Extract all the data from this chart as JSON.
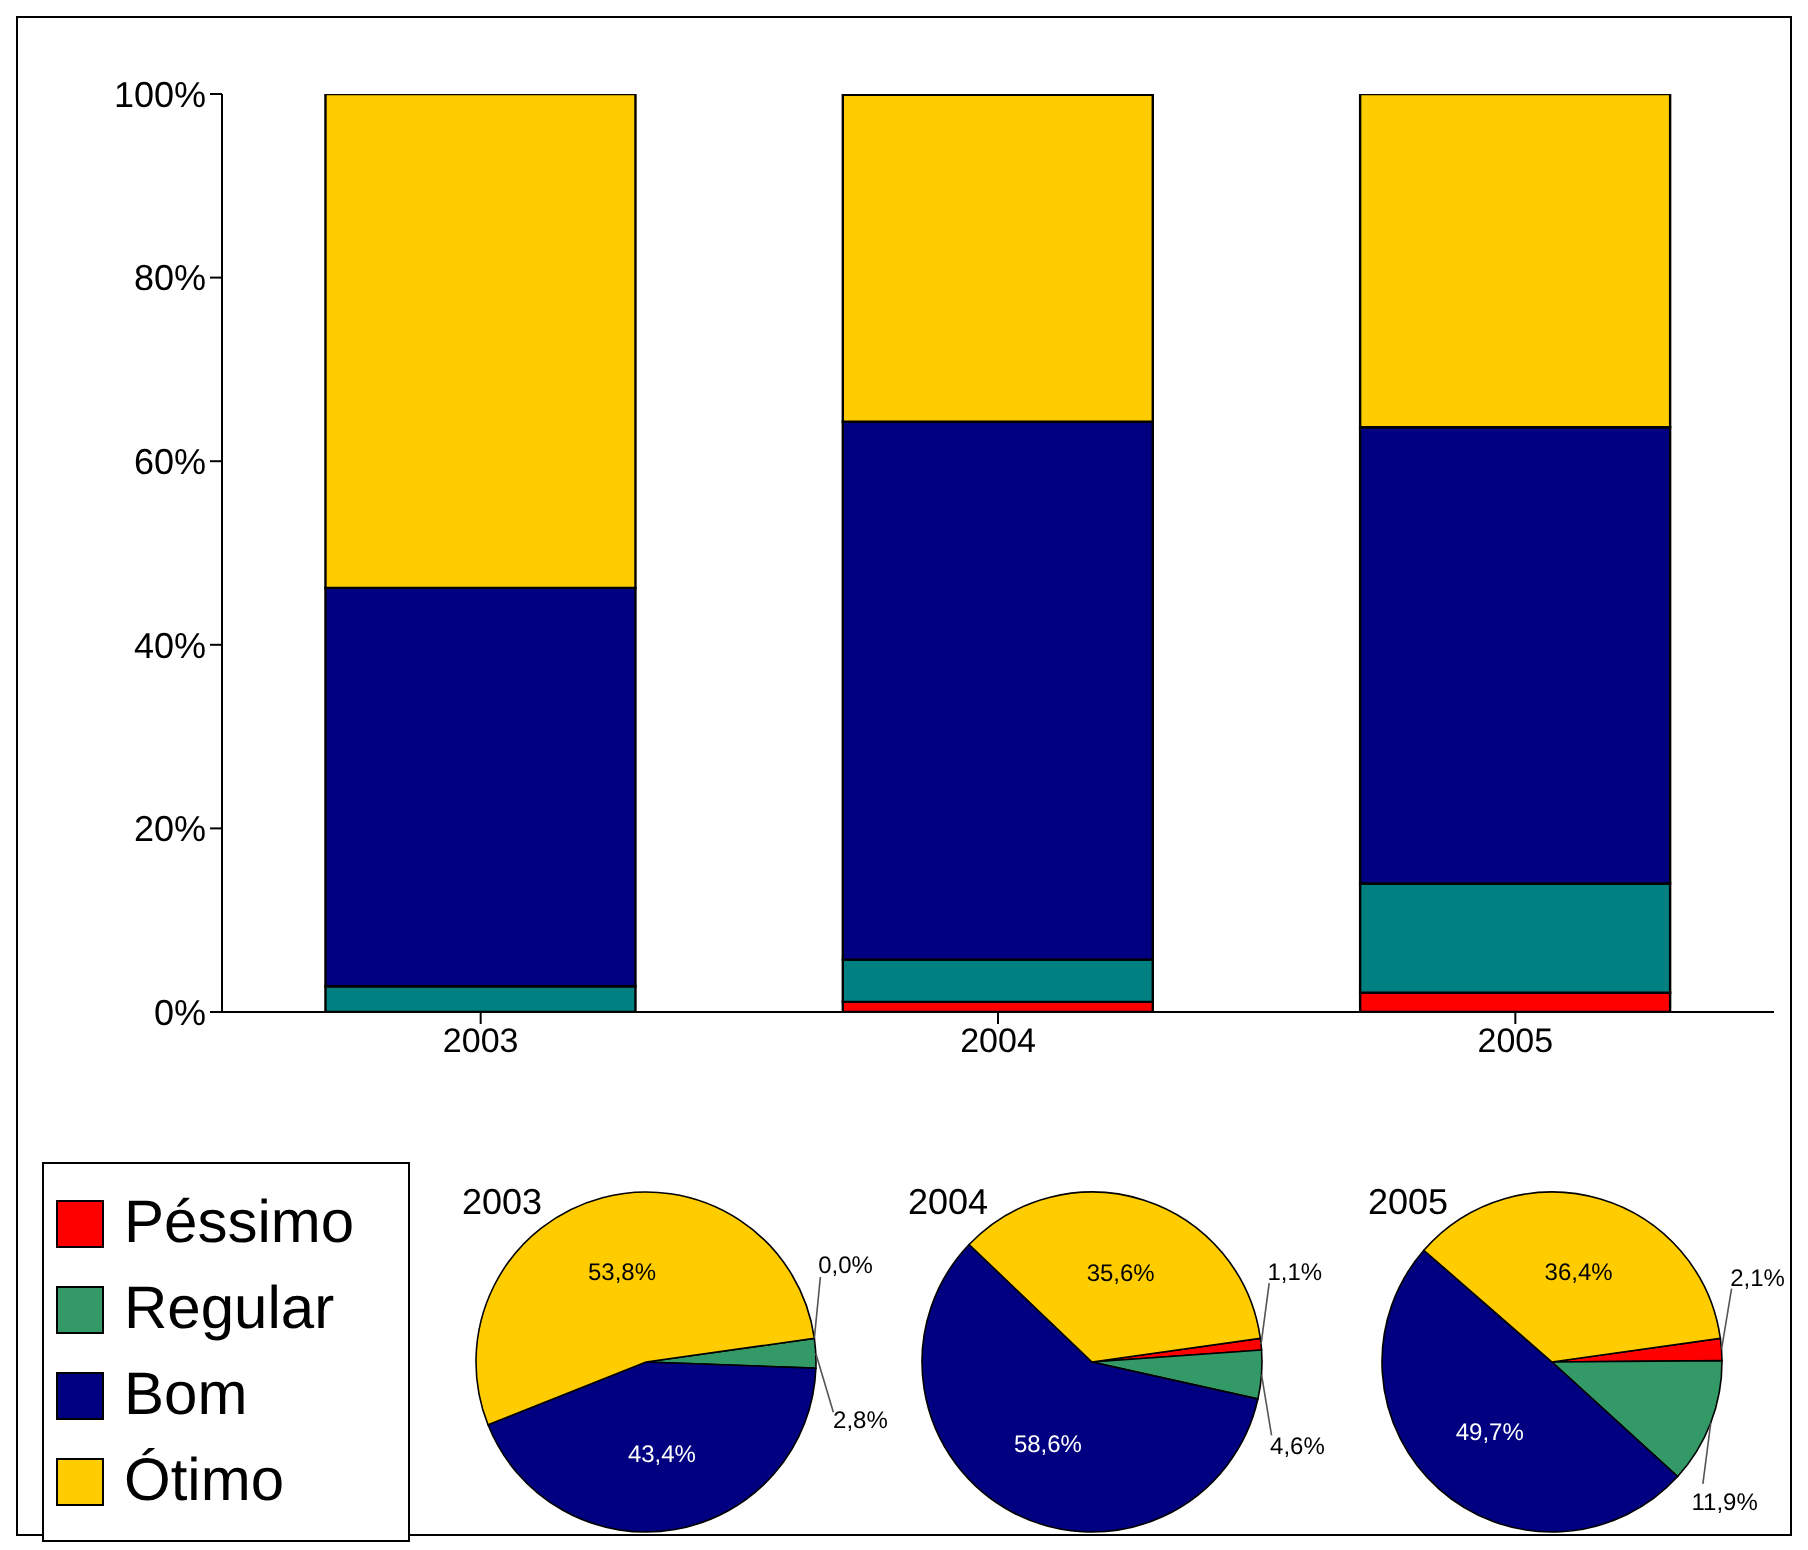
{
  "chart_data": [
    {
      "type": "bar",
      "stacked": true,
      "categories": [
        "2003",
        "2004",
        "2005"
      ],
      "ylim": [
        0,
        100
      ],
      "yticks": [
        {
          "value": 0,
          "label": "0%"
        },
        {
          "value": 20,
          "label": "20%"
        },
        {
          "value": 40,
          "label": "40%"
        },
        {
          "value": 60,
          "label": "60%"
        },
        {
          "value": 80,
          "label": "80%"
        },
        {
          "value": 100,
          "label": "100%"
        }
      ],
      "series": [
        {
          "color": "#ff0000",
          "values": [
            0.0,
            1.1,
            2.1
          ]
        },
        {
          "color": "#008080",
          "values": [
            2.8,
            4.6,
            11.9
          ]
        },
        {
          "color": "#000080",
          "values": [
            43.4,
            58.6,
            49.7
          ]
        },
        {
          "color": "#ffcc00",
          "values": [
            53.8,
            35.6,
            36.4
          ]
        }
      ]
    },
    {
      "type": "pie",
      "title": "2003",
      "legend": "left",
      "categories": [
        "Péssimo",
        "Regular",
        "Bom",
        "Ótimo"
      ],
      "values": [
        0.0,
        2.8,
        43.4,
        53.8
      ],
      "colors": [
        "#ff0000",
        "#339966",
        "#000080",
        "#ffcc00"
      ],
      "value_labels": [
        "0,0%",
        "2,8%",
        "43,4%",
        "53,8%"
      ]
    },
    {
      "type": "pie",
      "title": "2004",
      "categories": [
        null,
        null,
        null,
        null
      ],
      "values": [
        1.1,
        4.6,
        58.6,
        35.6
      ],
      "colors": [
        "#ff0000",
        "#339966",
        "#000080",
        "#ffcc00"
      ],
      "value_labels": [
        "1,1%",
        "4,6%",
        "58,6%",
        "35,6%"
      ]
    },
    {
      "type": "pie",
      "title": "2005",
      "categories": [
        null,
        null,
        null,
        null
      ],
      "values": [
        2.1,
        11.9,
        49.7,
        36.4
      ],
      "colors": [
        "#ff0000",
        "#339966",
        "#000080",
        "#ffcc00"
      ],
      "value_labels": [
        "2,1%",
        "11,9%",
        "49,7%",
        "36,4%"
      ]
    }
  ]
}
